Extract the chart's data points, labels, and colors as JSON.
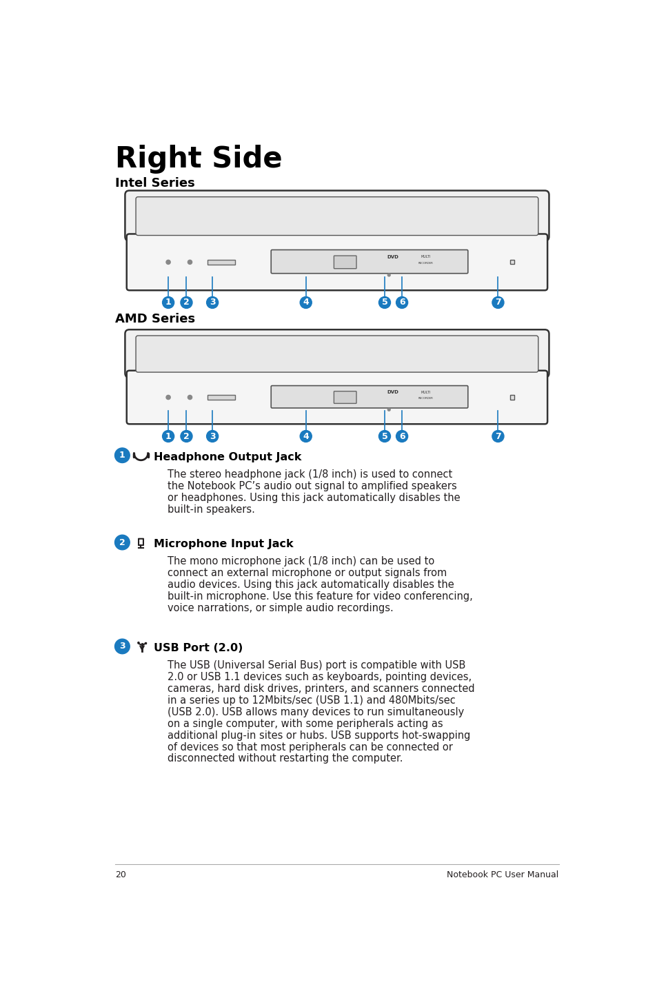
{
  "title": "Right Side",
  "subtitle1": "Intel Series",
  "subtitle2": "AMD Series",
  "bg_color": "#ffffff",
  "title_color": "#000000",
  "blue_color": "#1a7abf",
  "text_color": "#231f20",
  "page_number": "20",
  "footer_text": "Notebook PC User Manual",
  "items": [
    {
      "num": "1",
      "icon": "headphone",
      "title": "Headphone Output Jack",
      "body": "The stereo headphone jack (1/8 inch) is used to connect\nthe Notebook PC’s audio out signal to amplified speakers\nor headphones. Using this jack automatically disables the\nbuilt-in speakers."
    },
    {
      "num": "2",
      "icon": "mic",
      "title": "Microphone Input Jack",
      "body": "The mono microphone jack (1/8 inch) can be used to\nconnect an external microphone or output signals from\naudio devices. Using this jack automatically disables the\nbuilt-in microphone. Use this feature for video conferencing,\nvoice narrations, or simple audio recordings."
    },
    {
      "num": "3",
      "icon": "usb",
      "title": "USB Port (2.0)",
      "body": "The USB (Universal Serial Bus) port is compatible with USB\n2.0 or USB 1.1 devices such as keyboards, pointing devices,\ncameras, hard disk drives, printers, and scanners connected\nin a series up to 12Mbits/sec (USB 1.1) and 480Mbits/sec\n(USB 2.0). USB allows many devices to run simultaneously\non a single computer, with some peripherals acting as\nadditional plug-in sites or hubs. USB supports hot-swapping\nof devices so that most peripherals can be connected or\ndisconnected without restarting the computer."
    }
  ]
}
